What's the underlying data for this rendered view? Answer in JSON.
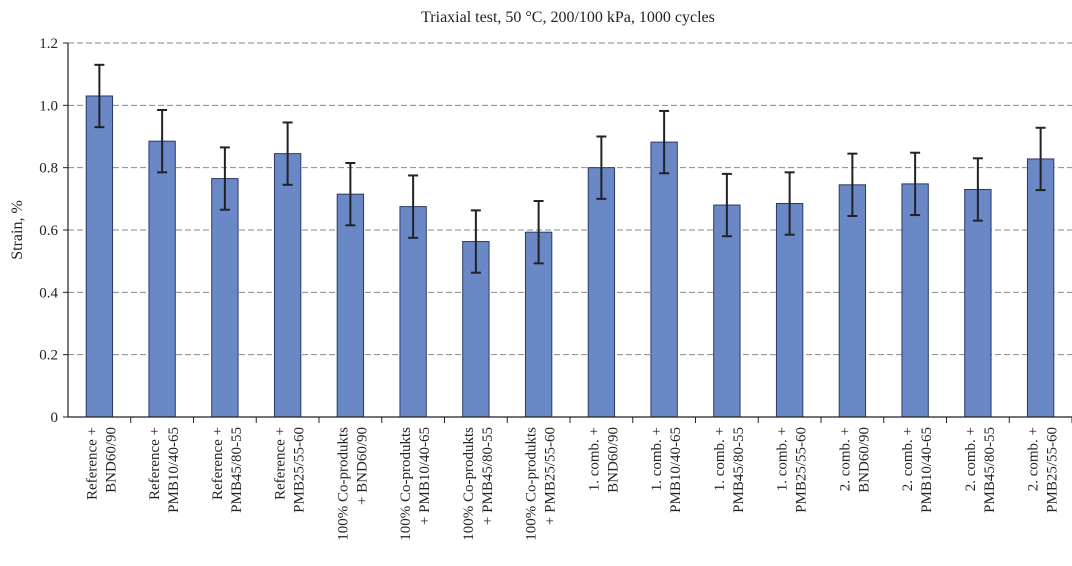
{
  "chart_data": {
    "type": "bar",
    "title": "Triaxial test, 50 °C, 200/100 kPa, 1000 cycles",
    "ylabel": "Strain, %",
    "xlabel": "",
    "ylim": [
      0,
      1.2
    ],
    "yticks": [
      "0",
      "0.2",
      "0.4",
      "0.6",
      "0.8",
      "1.0",
      "1.2"
    ],
    "ytick_values": [
      0,
      0.2,
      0.4,
      0.6,
      0.8,
      1.0,
      1.2
    ],
    "grid": true,
    "bar_color": "#6a87c6",
    "categories": [
      [
        "Reference +",
        "BND60/90"
      ],
      [
        "Reference +",
        "PMB10/40-65"
      ],
      [
        "Reference +",
        "PMB45/80-55"
      ],
      [
        "Reference +",
        "PMB25/55-60"
      ],
      [
        "100% Co-produkts",
        "+ BND60/90"
      ],
      [
        "100% Co-produkts",
        "+ PMB10/40-65"
      ],
      [
        "100% Co-produkts",
        "+ PMB45/80-55"
      ],
      [
        "100% Co-produkts",
        "+ PMB25/55-60"
      ],
      [
        "1. comb. +",
        "BND60/90"
      ],
      [
        "1. comb. +",
        "PMB10/40-65"
      ],
      [
        "1. comb. +",
        "PMB45/80-55"
      ],
      [
        "1. comb. +",
        "PMB25/55-60"
      ],
      [
        "2. comb. +",
        "BND60/90"
      ],
      [
        "2. comb. +",
        "PMB10/40-65"
      ],
      [
        "2. comb. +",
        "PMB45/80-55"
      ],
      [
        "2. comb. +",
        "PMB25/55-60"
      ]
    ],
    "values": [
      1.03,
      0.885,
      0.765,
      0.845,
      0.715,
      0.675,
      0.563,
      0.593,
      0.8,
      0.882,
      0.68,
      0.685,
      0.745,
      0.748,
      0.73,
      0.828
    ],
    "error": [
      0.1,
      0.1,
      0.1,
      0.1,
      0.1,
      0.1,
      0.1,
      0.1,
      0.1,
      0.1,
      0.1,
      0.1,
      0.1,
      0.1,
      0.1,
      0.1
    ]
  }
}
